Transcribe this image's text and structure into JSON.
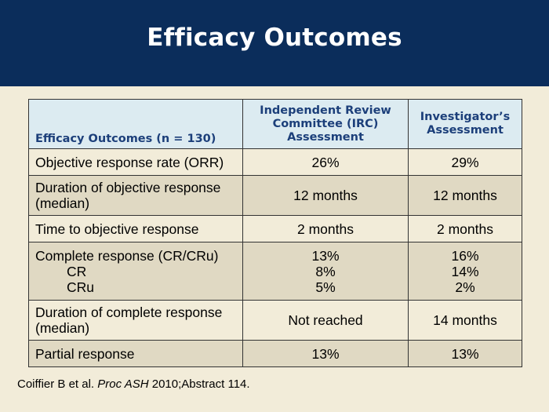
{
  "slide": {
    "title": "Efficacy Outcomes"
  },
  "table": {
    "headers": {
      "label": "Efficacy Outcomes (n = 130)",
      "irc": "Independent Review Committee (IRC) Assessment",
      "investigator": "Investigator’s Assessment"
    },
    "rows": [
      {
        "label": "Objective response rate (ORR)",
        "irc": "26%",
        "investigator": "29%"
      },
      {
        "label": "Duration of objective response (median)",
        "irc": "12 months",
        "investigator": "12 months"
      },
      {
        "label": "Time to objective response",
        "irc": "2 months",
        "investigator": "2 months"
      },
      {
        "label": "Complete response (CR/CRu)",
        "irc": "13%",
        "investigator": "16%",
        "sub": [
          {
            "label": "CR",
            "irc": "8%",
            "investigator": "14%"
          },
          {
            "label": "CRu",
            "irc": "5%",
            "investigator": "2%"
          }
        ]
      },
      {
        "label": "Duration of complete response (median)",
        "irc": "Not reached",
        "investigator": "14 months"
      },
      {
        "label": "Partial response",
        "irc": "13%",
        "investigator": "13%"
      }
    ]
  },
  "citation": {
    "authors": "Coiffier B et al.",
    "journal": "Proc ASH",
    "details": "2010;Abstract 114."
  }
}
